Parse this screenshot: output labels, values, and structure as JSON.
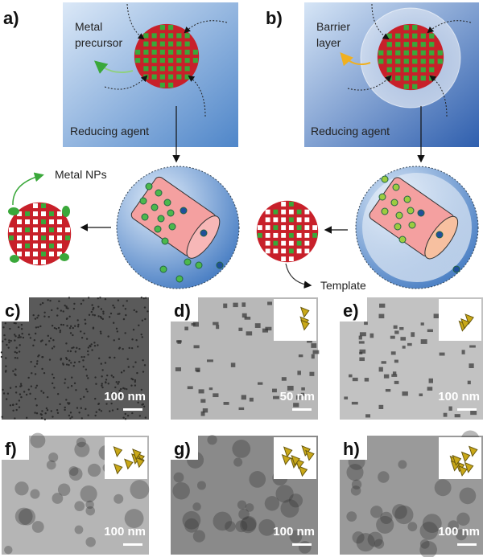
{
  "panels": {
    "a": {
      "label": "a)",
      "metal_precursor": [
        "Metal",
        "precursor"
      ],
      "reducing_agent": "Reducing agent",
      "metal_nps": "Metal NPs"
    },
    "b": {
      "label": "b)",
      "barrier_layer": [
        "Barrier",
        "layer"
      ],
      "reducing_agent": "Reducing agent",
      "template": "Template"
    },
    "tem": [
      {
        "label": "c)",
        "scale": "100 nm"
      },
      {
        "label": "d)",
        "scale": "50 nm"
      },
      {
        "label": "e)",
        "scale": "100 nm"
      },
      {
        "label": "f)",
        "scale": "100 nm"
      },
      {
        "label": "g)",
        "scale": "100 nm"
      },
      {
        "label": "h)",
        "scale": "100 nm"
      }
    ]
  },
  "colors": {
    "template_red": "#c8202a",
    "metal_green": "#3aa83a",
    "box_blue": "#5a8fcf",
    "inset_gold": "#c9a818"
  }
}
